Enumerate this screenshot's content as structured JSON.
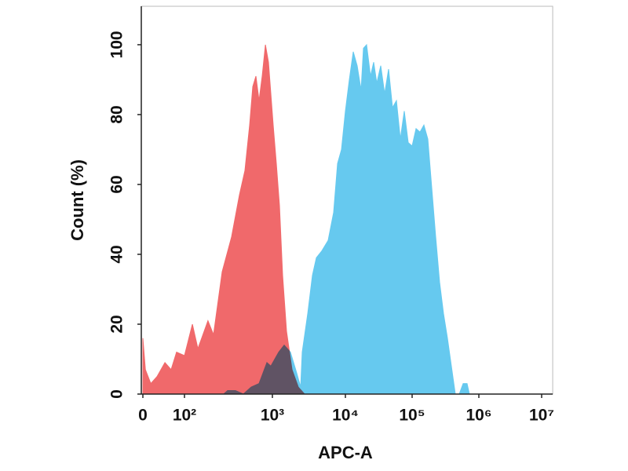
{
  "chart_data": {
    "type": "area",
    "x_label": "APC-A",
    "y_label": "Count  (%)",
    "xlim": [
      0,
      15000000
    ],
    "ylim": [
      0,
      111
    ],
    "xticks": [
      0,
      {
        "value": 100,
        "label": "10²"
      },
      {
        "value": 1000,
        "label": "10³"
      },
      {
        "value": 10000,
        "label": "10⁴"
      },
      {
        "value": 100000,
        "label": "10⁵"
      },
      {
        "value": 1000000,
        "label": "10⁶"
      },
      {
        "value": 10000000,
        "label": "10⁷"
      }
    ],
    "yticks": [
      0,
      20,
      40,
      60,
      80,
      100
    ],
    "series": [
      {
        "color": "#66c9ef",
        "x": [
          279,
          310,
          380,
          467,
          574,
          705,
          866,
          959,
          1219,
          1449,
          1766,
          2153,
          2438,
          2564,
          3048,
          3535,
          4000,
          4753,
          5794,
          6897,
          7805,
          8831,
          10000,
          11450,
          13120,
          15010,
          17180,
          18650,
          20800,
          23770,
          26520,
          29580,
          33830,
          38720,
          44360,
          50800,
          58210,
          66680,
          76250,
          87320,
          100000,
          114500,
          131200,
          150000,
          171800,
          196800,
          225400,
          258200,
          295800,
          338100,
          387300,
          443600,
          508200,
          582100,
          666800,
          722800
        ],
        "values": [
          0,
          1,
          1,
          0,
          2,
          3,
          9,
          8,
          12,
          14,
          12,
          6,
          2,
          12,
          23,
          34,
          39,
          41,
          44,
          52,
          66,
          70,
          81,
          90,
          98,
          94,
          87,
          99,
          100,
          91,
          95,
          89,
          94,
          86,
          93,
          82,
          84,
          73,
          81,
          72,
          71,
          76,
          75,
          77,
          73,
          59,
          45,
          32,
          23,
          16,
          8,
          0,
          0,
          3,
          3,
          0
        ]
      },
      {
        "color": "#f0696b",
        "x": [
          0,
          6,
          19,
          34,
          53,
          68,
          81,
          100,
          123,
          142,
          185,
          214,
          268,
          343,
          422,
          487,
          551,
          598,
          649,
          705,
          765,
          832,
          902,
          1025,
          1132,
          1250,
          1380,
          1563,
          1858,
          2263,
          2760
        ],
        "values": [
          16,
          7,
          3,
          5,
          9,
          7,
          12,
          11,
          20,
          13,
          21,
          17,
          35,
          45,
          57,
          64,
          77,
          88,
          91,
          84,
          91,
          100,
          95,
          77,
          66,
          54,
          34,
          18,
          7,
          2,
          0
        ]
      }
    ]
  }
}
